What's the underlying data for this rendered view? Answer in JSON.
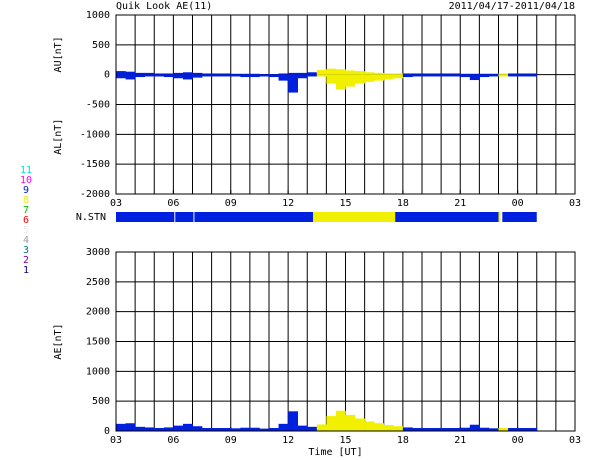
{
  "header": {
    "title": "Quik Look AE(11)",
    "date_range": "2011/04/17-2011/04/18"
  },
  "legend": [
    {
      "value": 11,
      "color": "#00e0e0"
    },
    {
      "value": 10,
      "color": "#ff00ff"
    },
    {
      "value": 9,
      "color": "#0020e0"
    },
    {
      "value": 8,
      "color": "#f0f000"
    },
    {
      "value": 7,
      "color": "#00c000"
    },
    {
      "value": 6,
      "color": "#ff0000"
    },
    {
      "value": 5,
      "color": "#e8e8e8"
    },
    {
      "value": 4,
      "color": "#a0a0a0"
    },
    {
      "value": 3,
      "color": "#008080"
    },
    {
      "value": 2,
      "color": "#8000a0"
    },
    {
      "value": 1,
      "color": "#000080"
    }
  ],
  "stations_bar": {
    "label": "N.STN",
    "segments": [
      {
        "start": 3,
        "end": 6.05,
        "stations": 9
      },
      {
        "start": 6.1,
        "end": 7.05,
        "stations": 9
      },
      {
        "start": 7.1,
        "end": 13.3,
        "stations": 9
      },
      {
        "start": 13.3,
        "end": 17.6,
        "stations": 8
      },
      {
        "start": 17.6,
        "end": 23,
        "stations": 9
      },
      {
        "start": 23,
        "end": 23.1,
        "stations": 8
      },
      {
        "start": 23.2,
        "end": 25,
        "stations": 9
      }
    ]
  },
  "chart_data": [
    {
      "type": "bar",
      "ylabels": [
        "AU[nT]",
        "AL[nT]"
      ],
      "x": [
        3,
        3.5,
        4,
        4.5,
        5,
        5.5,
        6,
        6.5,
        7,
        7.5,
        8,
        8.5,
        9,
        9.5,
        10,
        10.5,
        11,
        11.5,
        12,
        12.5,
        13,
        13.5,
        14,
        14.5,
        15,
        15.5,
        16,
        16.5,
        17,
        17.5,
        18,
        18.5,
        19,
        19.5,
        20,
        20.5,
        21,
        21.5,
        22,
        22.5,
        23,
        23.5,
        24,
        24.5,
        25
      ],
      "series": [
        {
          "name": "AU",
          "values": [
            60,
            50,
            30,
            30,
            20,
            20,
            30,
            40,
            30,
            20,
            20,
            20,
            15,
            15,
            15,
            10,
            10,
            20,
            30,
            30,
            40,
            80,
            100,
            90,
            70,
            60,
            40,
            30,
            20,
            20,
            20,
            20,
            20,
            20,
            20,
            20,
            15,
            15,
            15,
            15,
            20,
            20,
            20,
            20,
            20
          ]
        },
        {
          "name": "AL",
          "values": [
            -60,
            -80,
            -40,
            -30,
            -30,
            -40,
            -60,
            -80,
            -50,
            -30,
            -30,
            -30,
            -30,
            -40,
            -40,
            -30,
            -40,
            -100,
            -300,
            -60,
            -30,
            -30,
            -150,
            -250,
            -200,
            -150,
            -120,
            -100,
            -80,
            -60,
            -40,
            -30,
            -30,
            -30,
            -30,
            -30,
            -40,
            -90,
            -40,
            -30,
            -30,
            -30,
            -30,
            -30,
            -30
          ]
        }
      ],
      "xlim": [
        3,
        27
      ],
      "xticks": [
        {
          "value": 3,
          "label": "03"
        },
        {
          "value": 6,
          "label": "06"
        },
        {
          "value": 9,
          "label": "09"
        },
        12,
        15,
        18,
        21,
        {
          "value": 24,
          "label": "00"
        },
        {
          "value": 27,
          "label": "03"
        }
      ],
      "x_grid_step": 1,
      "ylim": [
        -2000,
        1000
      ],
      "yticks": [
        -2000,
        -1500,
        -1000,
        -500,
        0,
        500,
        1000
      ],
      "grid": true
    },
    {
      "type": "bar",
      "ylabels": [
        "AE[nT]"
      ],
      "xlabel": "Time [UT]",
      "x": [
        3,
        3.5,
        4,
        4.5,
        5,
        5.5,
        6,
        6.5,
        7,
        7.5,
        8,
        8.5,
        9,
        9.5,
        10,
        10.5,
        11,
        11.5,
        12,
        12.5,
        13,
        13.5,
        14,
        14.5,
        15,
        15.5,
        16,
        16.5,
        17,
        17.5,
        18,
        18.5,
        19,
        19.5,
        20,
        20.5,
        21,
        21.5,
        22,
        22.5,
        23,
        23.5,
        24,
        24.5,
        25
      ],
      "series": [
        {
          "name": "AE",
          "values": [
            120,
            130,
            70,
            60,
            50,
            60,
            90,
            120,
            80,
            50,
            50,
            50,
            45,
            55,
            55,
            40,
            50,
            120,
            330,
            90,
            70,
            110,
            250,
            340,
            270,
            210,
            160,
            130,
            100,
            80,
            60,
            50,
            50,
            50,
            50,
            50,
            55,
            105,
            55,
            45,
            50,
            50,
            50,
            50,
            50
          ]
        }
      ],
      "xlim": [
        3,
        27
      ],
      "xticks": [
        {
          "value": 3,
          "label": "03"
        },
        {
          "value": 6,
          "label": "06"
        },
        {
          "value": 9,
          "label": "09"
        },
        12,
        15,
        18,
        21,
        {
          "value": 24,
          "label": "00"
        },
        {
          "value": 27,
          "label": "03"
        }
      ],
      "x_grid_step": 1,
      "ylim": [
        0,
        3000
      ],
      "yticks": [
        0,
        500,
        1000,
        1500,
        2000,
        2500,
        3000
      ],
      "grid": true
    }
  ]
}
